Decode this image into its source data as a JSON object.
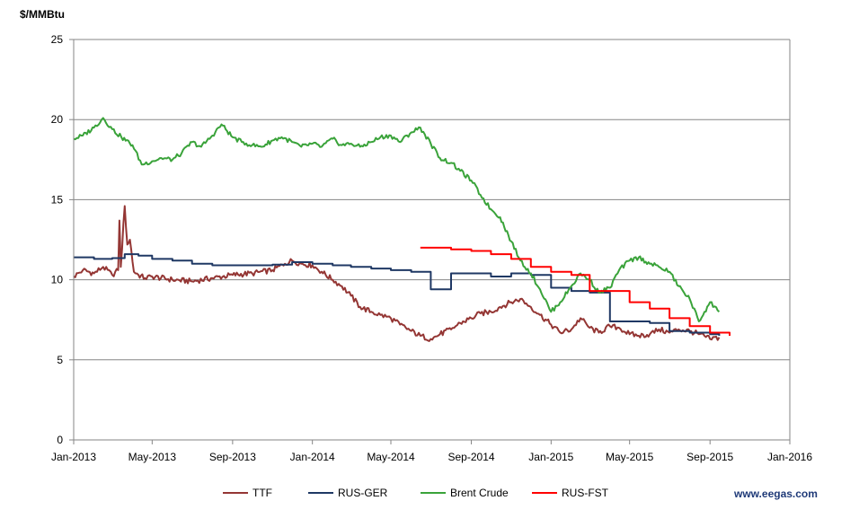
{
  "chart_data": {
    "type": "line",
    "title": "",
    "ylabel": "$/MMBtu",
    "xlabel": "",
    "ylim": [
      0,
      25
    ],
    "yticks": [
      0,
      5,
      10,
      15,
      20,
      25
    ],
    "xlim": [
      "2013-01-01",
      "2016-01-01"
    ],
    "xticks": [
      "Jan-2013",
      "May-2013",
      "Sep-2013",
      "Jan-2014",
      "May-2014",
      "Sep-2014",
      "Jan-2015",
      "May-2015",
      "Sep-2015",
      "Jan-2016"
    ],
    "grid": "horizontal",
    "legend": "bottom",
    "series": [
      {
        "name": "TTF",
        "color": "#943634",
        "x": [
          "2013-01-01",
          "2013-01-15",
          "2013-02-01",
          "2013-02-15",
          "2013-03-01",
          "2013-03-10",
          "2013-03-12",
          "2013-03-14",
          "2013-03-20",
          "2013-03-24",
          "2013-03-28",
          "2013-04-03",
          "2013-04-10",
          "2013-04-20",
          "2013-05-01",
          "2013-06-01",
          "2013-07-01",
          "2013-08-01",
          "2013-09-01",
          "2013-10-01",
          "2013-11-01",
          "2013-11-20",
          "2013-12-01",
          "2013-12-15",
          "2014-01-01",
          "2014-01-15",
          "2014-02-01",
          "2014-02-15",
          "2014-03-01",
          "2014-03-15",
          "2014-04-01",
          "2014-04-15",
          "2014-05-01",
          "2014-05-15",
          "2014-06-01",
          "2014-06-15",
          "2014-07-01",
          "2014-07-15",
          "2014-08-01",
          "2014-08-15",
          "2014-09-01",
          "2014-09-15",
          "2014-10-01",
          "2014-10-15",
          "2014-11-01",
          "2014-11-15",
          "2014-12-01",
          "2014-12-15",
          "2015-01-01",
          "2015-01-15",
          "2015-02-01",
          "2015-02-15",
          "2015-03-01",
          "2015-03-15",
          "2015-04-01",
          "2015-04-15",
          "2015-05-01",
          "2015-05-15",
          "2015-06-01",
          "2015-06-15",
          "2015-07-01",
          "2015-07-15",
          "2015-08-01",
          "2015-08-15",
          "2015-09-01",
          "2015-09-15"
        ],
        "values": [
          10.2,
          10.6,
          10.4,
          10.8,
          10.3,
          10.6,
          13.7,
          10.8,
          14.6,
          12.2,
          12.5,
          10.5,
          10.3,
          10.1,
          10.2,
          10.0,
          9.9,
          10.1,
          10.3,
          10.4,
          10.6,
          11.0,
          11.2,
          11.0,
          10.9,
          10.5,
          10.0,
          9.6,
          9.0,
          8.3,
          8.0,
          7.8,
          7.6,
          7.2,
          6.8,
          6.5,
          6.3,
          6.6,
          6.9,
          7.3,
          7.6,
          7.9,
          8.0,
          8.3,
          8.6,
          8.8,
          8.3,
          7.8,
          7.2,
          6.7,
          6.9,
          7.6,
          7.0,
          6.7,
          7.1,
          7.0,
          6.6,
          6.5,
          6.6,
          6.9,
          6.7,
          6.9,
          6.8,
          6.6,
          6.3,
          6.4
        ]
      },
      {
        "name": "RUS-GER",
        "color": "#1f3864",
        "step": true,
        "x": [
          "2013-01-01",
          "2013-02-01",
          "2013-03-01",
          "2013-03-20",
          "2013-04-10",
          "2013-05-01",
          "2013-06-01",
          "2013-07-01",
          "2013-08-01",
          "2013-11-01",
          "2013-12-01",
          "2014-01-01",
          "2014-02-01",
          "2014-03-01",
          "2014-04-01",
          "2014-05-01",
          "2014-06-01",
          "2014-07-01",
          "2014-08-01",
          "2014-09-01",
          "2014-10-01",
          "2014-11-01",
          "2014-12-01",
          "2015-01-01",
          "2015-02-01",
          "2015-03-01",
          "2015-04-01",
          "2015-05-01",
          "2015-06-01",
          "2015-07-01",
          "2015-08-01",
          "2015-09-01",
          "2015-09-15"
        ],
        "values": [
          11.4,
          11.3,
          11.35,
          11.6,
          11.5,
          11.3,
          11.2,
          11.0,
          10.9,
          10.95,
          11.1,
          11.0,
          10.9,
          10.8,
          10.7,
          10.6,
          10.5,
          9.4,
          10.4,
          10.4,
          10.2,
          10.4,
          10.3,
          9.5,
          9.3,
          9.2,
          7.4,
          7.4,
          7.3,
          6.8,
          6.7,
          6.6,
          6.5
        ]
      },
      {
        "name": "Brent Crude",
        "color": "#3aa33a",
        "x": [
          "2013-01-01",
          "2013-01-15",
          "2013-02-01",
          "2013-02-15",
          "2013-03-01",
          "2013-03-15",
          "2013-04-01",
          "2013-04-15",
          "2013-05-01",
          "2013-05-15",
          "2013-06-01",
          "2013-06-15",
          "2013-07-01",
          "2013-07-15",
          "2013-08-01",
          "2013-08-15",
          "2013-09-01",
          "2013-09-15",
          "2013-10-01",
          "2013-10-15",
          "2013-11-01",
          "2013-11-15",
          "2013-12-01",
          "2013-12-15",
          "2014-01-01",
          "2014-01-15",
          "2014-02-01",
          "2014-02-15",
          "2014-03-01",
          "2014-03-15",
          "2014-04-01",
          "2014-04-15",
          "2014-05-01",
          "2014-05-15",
          "2014-06-01",
          "2014-06-15",
          "2014-07-01",
          "2014-07-15",
          "2014-08-01",
          "2014-08-15",
          "2014-09-01",
          "2014-09-15",
          "2014-10-01",
          "2014-10-15",
          "2014-11-01",
          "2014-11-15",
          "2014-12-01",
          "2014-12-15",
          "2015-01-01",
          "2015-01-15",
          "2015-02-01",
          "2015-02-15",
          "2015-03-01",
          "2015-03-15",
          "2015-04-01",
          "2015-04-15",
          "2015-05-01",
          "2015-05-15",
          "2015-06-01",
          "2015-06-15",
          "2015-07-01",
          "2015-07-15",
          "2015-08-01",
          "2015-08-15",
          "2015-09-01",
          "2015-09-15"
        ],
        "values": [
          18.8,
          19.0,
          19.5,
          20.1,
          19.4,
          18.9,
          18.4,
          17.2,
          17.4,
          17.6,
          17.5,
          17.9,
          18.6,
          18.3,
          19.0,
          19.7,
          18.9,
          18.6,
          18.4,
          18.3,
          18.7,
          18.9,
          18.6,
          18.3,
          18.5,
          18.3,
          18.8,
          18.4,
          18.5,
          18.3,
          18.6,
          18.9,
          19.0,
          18.6,
          19.2,
          19.5,
          18.5,
          17.6,
          17.3,
          16.8,
          16.2,
          15.3,
          14.4,
          13.9,
          12.4,
          11.2,
          10.4,
          9.4,
          8.0,
          8.6,
          9.6,
          10.4,
          10.0,
          9.2,
          9.5,
          10.6,
          11.2,
          11.4,
          11.0,
          10.8,
          10.5,
          9.6,
          8.8,
          7.4,
          8.6,
          8.0
        ]
      },
      {
        "name": "RUS-FST",
        "color": "#ff0000",
        "step": true,
        "x": [
          "2014-06-15",
          "2014-07-01",
          "2014-08-01",
          "2014-09-01",
          "2014-10-01",
          "2014-11-01",
          "2014-12-01",
          "2015-01-01",
          "2015-02-01",
          "2015-03-01",
          "2015-04-01",
          "2015-05-01",
          "2015-06-01",
          "2015-07-01",
          "2015-08-01",
          "2015-09-01",
          "2015-10-01"
        ],
        "values": [
          12.0,
          12.0,
          11.9,
          11.8,
          11.6,
          11.3,
          10.8,
          10.5,
          10.3,
          9.3,
          9.3,
          8.6,
          8.2,
          7.6,
          7.1,
          6.7,
          6.5
        ]
      }
    ]
  },
  "branding": {
    "site": "www.eegas.com"
  }
}
